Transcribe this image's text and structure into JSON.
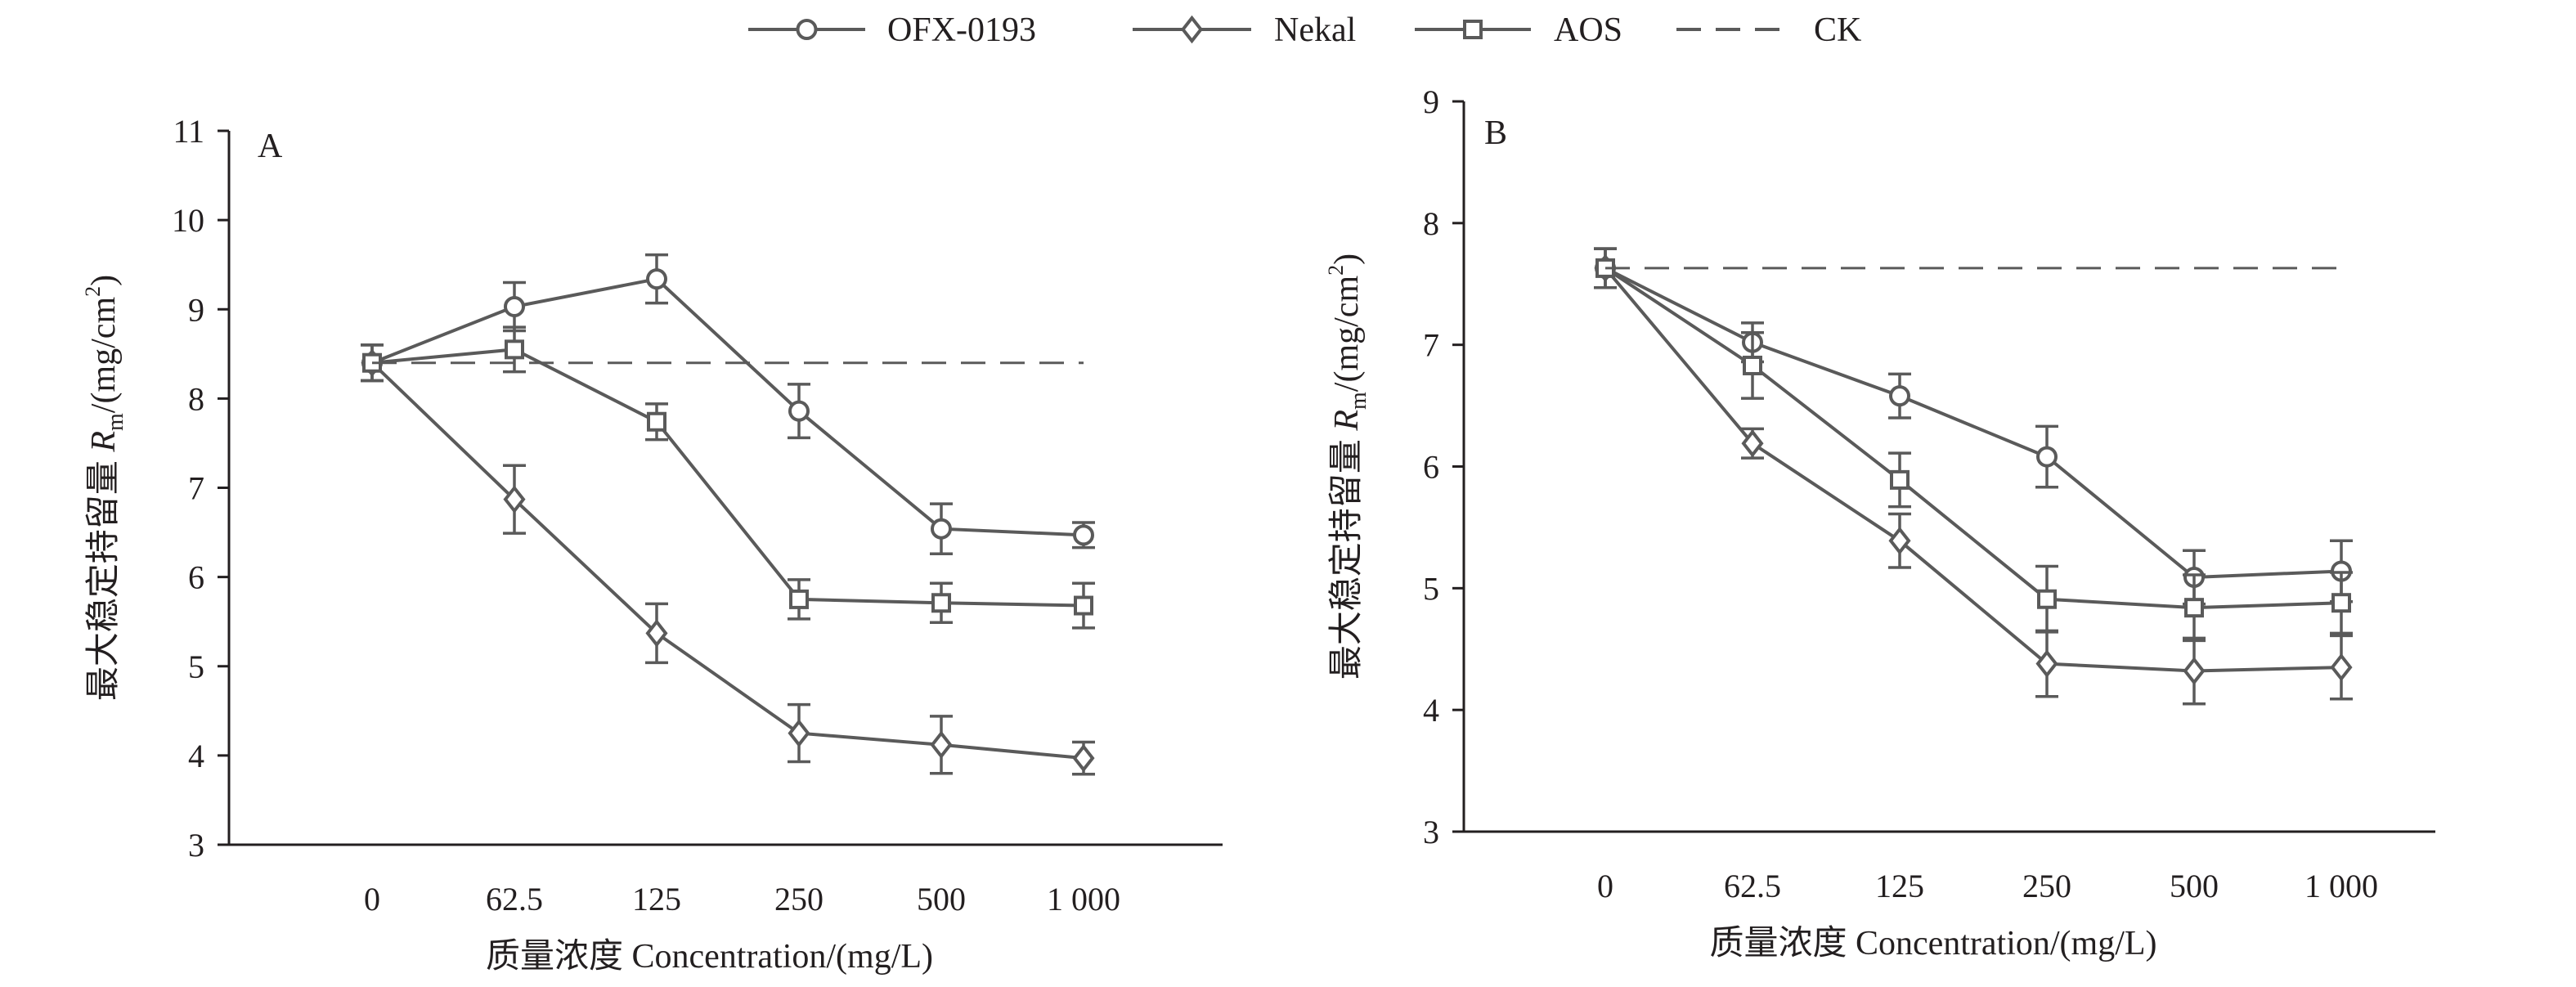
{
  "legend": [
    {
      "name": "OFX-0193",
      "marker": "circle",
      "dashed": false
    },
    {
      "name": "Nekal",
      "marker": "diamond",
      "dashed": false
    },
    {
      "name": "AOS",
      "marker": "square",
      "dashed": false
    },
    {
      "name": "CK",
      "marker": "none",
      "dashed": true
    }
  ],
  "colors": {
    "line": "#5a5a5a",
    "text": "#231f20",
    "background": "#ffffff"
  },
  "chart_data": [
    {
      "type": "line",
      "panel_label": "A",
      "categories": [
        "0",
        "62.5",
        "125",
        "250",
        "500",
        "1 000"
      ],
      "xlabel": "质量浓度 Concentration/(mg/L)",
      "ylabel": {
        "prefix": "最大稳定持留量 ",
        "symbol": "R",
        "subscript": "m",
        "unit_prefix": "/(mg/cm",
        "superscript": "2",
        "unit_suffix": ")"
      },
      "ylim": [
        3,
        11
      ],
      "yticks": [
        "3",
        "4",
        "5",
        "6",
        "7",
        "8",
        "9",
        "10",
        "11"
      ],
      "series": [
        {
          "name": "OFX-0193",
          "marker": "circle",
          "values": [
            8.4,
            9.03,
            9.34,
            7.86,
            6.54,
            6.47
          ],
          "errors": [
            0.2,
            0.27,
            0.27,
            0.3,
            0.28,
            0.14
          ]
        },
        {
          "name": "Nekal",
          "marker": "diamond",
          "values": [
            8.4,
            6.87,
            5.37,
            4.25,
            4.12,
            3.97
          ],
          "errors": [
            0.2,
            0.38,
            0.33,
            0.32,
            0.32,
            0.18
          ]
        },
        {
          "name": "AOS",
          "marker": "square",
          "values": [
            8.4,
            8.55,
            7.74,
            5.75,
            5.71,
            5.68
          ],
          "errors": [
            0.2,
            0.25,
            0.2,
            0.22,
            0.22,
            0.25
          ]
        },
        {
          "name": "CK",
          "dashed": true,
          "values": [
            8.4,
            8.4,
            8.4,
            8.4,
            8.4,
            8.4
          ]
        }
      ]
    },
    {
      "type": "line",
      "panel_label": "B",
      "categories": [
        "0",
        "62.5",
        "125",
        "250",
        "500",
        "1 000"
      ],
      "xlabel": "质量浓度 Concentration/(mg/L)",
      "ylabel": {
        "prefix": "最大稳定持留量 ",
        "symbol": "R",
        "subscript": "m",
        "unit_prefix": "/(mg/cm",
        "superscript": "2",
        "unit_suffix": ")"
      },
      "ylim": [
        3,
        9
      ],
      "yticks": [
        "3",
        "4",
        "5",
        "6",
        "7",
        "8",
        "9"
      ],
      "series": [
        {
          "name": "OFX-0193",
          "marker": "circle",
          "values": [
            7.63,
            7.02,
            6.58,
            6.08,
            5.09,
            5.14
          ],
          "errors": [
            0.16,
            0.16,
            0.18,
            0.25,
            0.22,
            0.25
          ]
        },
        {
          "name": "Nekal",
          "marker": "diamond",
          "values": [
            7.63,
            6.19,
            5.39,
            4.38,
            4.32,
            4.35
          ],
          "errors": [
            0.16,
            0.12,
            0.22,
            0.27,
            0.27,
            0.26
          ]
        },
        {
          "name": "AOS",
          "marker": "square",
          "values": [
            7.63,
            6.83,
            5.89,
            4.91,
            4.84,
            4.88
          ],
          "errors": [
            0.16,
            0.27,
            0.22,
            0.27,
            0.27,
            0.25
          ]
        },
        {
          "name": "CK",
          "dashed": true,
          "values": [
            7.63,
            7.63,
            7.63,
            7.63,
            7.63,
            7.63
          ]
        }
      ]
    }
  ]
}
